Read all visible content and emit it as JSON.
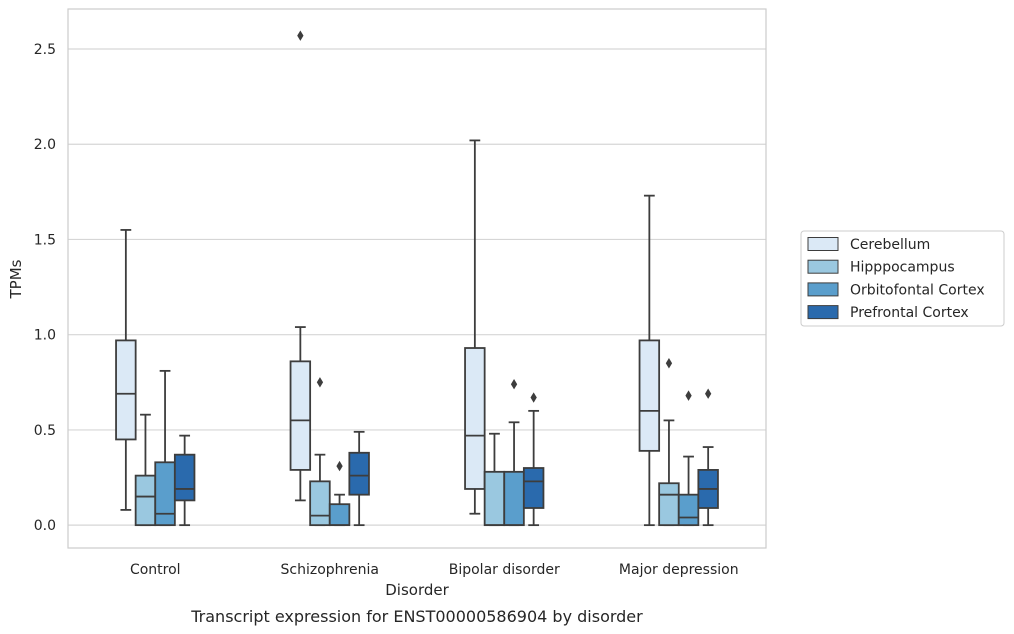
{
  "chart_data": {
    "type": "box",
    "title": "",
    "caption": "Transcript expression for ENST00000586904 by disorder",
    "xlabel": "Disorder",
    "ylabel": "TPMs",
    "ylim": [
      -0.12,
      2.71
    ],
    "yticks": [
      "0.0",
      "0.5",
      "1.0",
      "1.5",
      "2.0",
      "2.5"
    ],
    "grid": "horizontal",
    "legend_position": "right",
    "categories": [
      "Control",
      "Schizophrenia",
      "Bipolar disorder",
      "Major depression"
    ],
    "series": [
      {
        "name": "Cerebellum",
        "color": "#dbe9f6",
        "boxes": [
          {
            "whislo": 0.08,
            "q1": 0.45,
            "med": 0.69,
            "q3": 0.97,
            "whishi": 1.55,
            "fliers": []
          },
          {
            "whislo": 0.13,
            "q1": 0.29,
            "med": 0.55,
            "q3": 0.86,
            "whishi": 1.04,
            "fliers": [
              2.57
            ]
          },
          {
            "whislo": 0.06,
            "q1": 0.19,
            "med": 0.47,
            "q3": 0.93,
            "whishi": 2.02,
            "fliers": []
          },
          {
            "whislo": 0.0,
            "q1": 0.39,
            "med": 0.6,
            "q3": 0.97,
            "whishi": 1.73,
            "fliers": []
          }
        ]
      },
      {
        "name": "Hipppocampus",
        "color": "#9ac8e0",
        "boxes": [
          {
            "whislo": 0.0,
            "q1": 0.0,
            "med": 0.15,
            "q3": 0.26,
            "whishi": 0.58,
            "fliers": []
          },
          {
            "whislo": 0.0,
            "q1": 0.0,
            "med": 0.05,
            "q3": 0.23,
            "whishi": 0.37,
            "fliers": [
              0.75
            ]
          },
          {
            "whislo": 0.0,
            "q1": 0.0,
            "med": 0.0,
            "q3": 0.28,
            "whishi": 0.48,
            "fliers": []
          },
          {
            "whislo": 0.0,
            "q1": 0.0,
            "med": 0.16,
            "q3": 0.22,
            "whishi": 0.55,
            "fliers": [
              0.85
            ]
          }
        ]
      },
      {
        "name": "Orbitofontal Cortex",
        "color": "#5a9ecc",
        "boxes": [
          {
            "whislo": 0.0,
            "q1": 0.0,
            "med": 0.06,
            "q3": 0.33,
            "whishi": 0.81,
            "fliers": []
          },
          {
            "whislo": 0.0,
            "q1": 0.0,
            "med": 0.0,
            "q3": 0.11,
            "whishi": 0.16,
            "fliers": [
              0.31
            ]
          },
          {
            "whislo": 0.0,
            "q1": 0.0,
            "med": 0.0,
            "q3": 0.28,
            "whishi": 0.54,
            "fliers": [
              0.74
            ]
          },
          {
            "whislo": 0.0,
            "q1": 0.0,
            "med": 0.04,
            "q3": 0.16,
            "whishi": 0.36,
            "fliers": [
              0.68
            ]
          }
        ]
      },
      {
        "name": "Prefrontal Cortex",
        "color": "#2a6aad",
        "boxes": [
          {
            "whislo": 0.0,
            "q1": 0.13,
            "med": 0.19,
            "q3": 0.37,
            "whishi": 0.47,
            "fliers": []
          },
          {
            "whislo": 0.0,
            "q1": 0.16,
            "med": 0.26,
            "q3": 0.38,
            "whishi": 0.49,
            "fliers": []
          },
          {
            "whislo": 0.0,
            "q1": 0.09,
            "med": 0.23,
            "q3": 0.3,
            "whishi": 0.6,
            "fliers": [
              0.67
            ]
          },
          {
            "whislo": 0.0,
            "q1": 0.09,
            "med": 0.19,
            "q3": 0.29,
            "whishi": 0.41,
            "fliers": [
              0.69
            ]
          }
        ]
      }
    ]
  }
}
